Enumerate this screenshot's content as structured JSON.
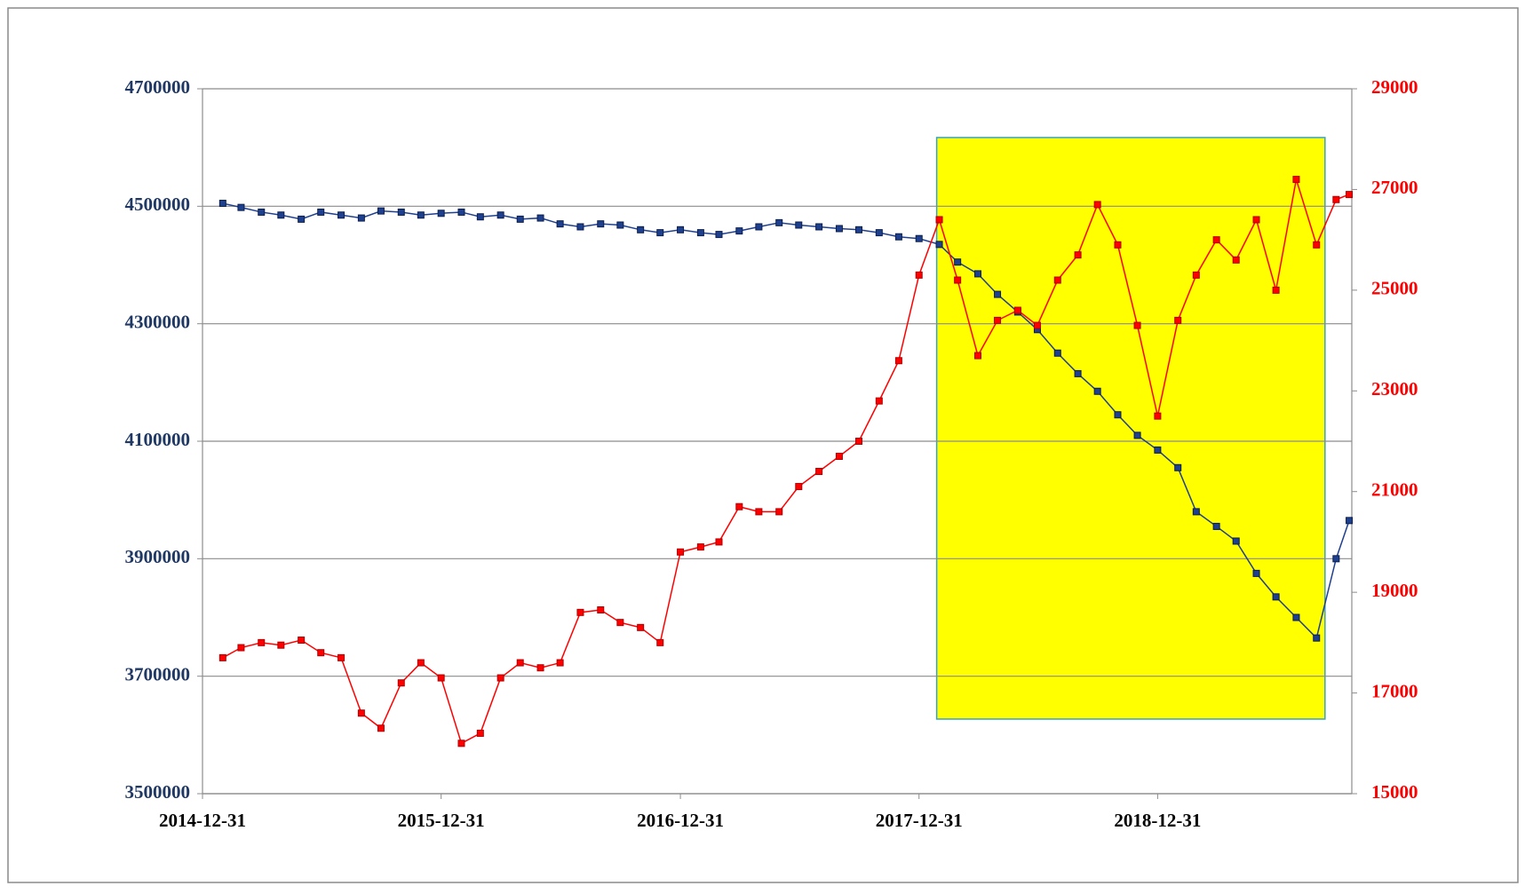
{
  "chart_data": {
    "type": "line",
    "x": [
      "2015-01-31",
      "2015-02-28",
      "2015-03-31",
      "2015-04-30",
      "2015-05-31",
      "2015-06-30",
      "2015-07-31",
      "2015-08-31",
      "2015-09-30",
      "2015-10-31",
      "2015-11-30",
      "2015-12-31",
      "2016-01-31",
      "2016-02-29",
      "2016-03-31",
      "2016-04-30",
      "2016-05-31",
      "2016-06-30",
      "2016-07-31",
      "2016-08-31",
      "2016-09-30",
      "2016-10-31",
      "2016-11-30",
      "2016-12-31",
      "2017-01-31",
      "2017-02-28",
      "2017-03-31",
      "2017-04-30",
      "2017-05-31",
      "2017-06-30",
      "2017-07-31",
      "2017-08-31",
      "2017-09-30",
      "2017-10-31",
      "2017-11-30",
      "2017-12-31",
      "2018-01-31",
      "2018-02-28",
      "2018-03-31",
      "2018-04-30",
      "2018-05-31",
      "2018-06-30",
      "2018-07-31",
      "2018-08-31",
      "2018-09-30",
      "2018-10-31",
      "2018-11-30",
      "2018-12-31",
      "2019-01-31",
      "2019-02-28",
      "2019-03-31",
      "2019-04-30",
      "2019-05-31",
      "2019-06-30",
      "2019-07-31",
      "2019-08-31",
      "2019-09-30",
      "2019-10-20"
    ],
    "series": [
      {
        "color": "#1f3f8f",
        "values": [
          4505000,
          4498000,
          4490000,
          4485000,
          4478000,
          4490000,
          4485000,
          4480000,
          4492000,
          4490000,
          4485000,
          4488000,
          4490000,
          4482000,
          4485000,
          4478000,
          4480000,
          4470000,
          4465000,
          4470000,
          4468000,
          4460000,
          4455000,
          4460000,
          4455000,
          4452000,
          4458000,
          4465000,
          4472000,
          4468000,
          4465000,
          4462000,
          4460000,
          4455000,
          4448000,
          4445000,
          4435000,
          4405000,
          4385000,
          4350000,
          4320000,
          4290000,
          4250000,
          4215000,
          4185000,
          4145000,
          4110000,
          4085000,
          4055000,
          3980000,
          3955000,
          3930000,
          3875000,
          3835000,
          3800000,
          3765000,
          3900000,
          3965000
        ]
      },
      {
        "color": "#ff0000",
        "axis": "y2",
        "values": [
          17700,
          17900,
          18000,
          17950,
          18050,
          17800,
          17700,
          16600,
          16300,
          17200,
          17600,
          17300,
          16000,
          16200,
          17300,
          17600,
          17500,
          17600,
          18600,
          18650,
          18400,
          18300,
          18000,
          19800,
          19900,
          20000,
          20700,
          20600,
          20600,
          21100,
          21400,
          21700,
          22000,
          22800,
          23600,
          25300,
          26400,
          25200,
          23700,
          24400,
          24600,
          24300,
          25200,
          25700,
          26700,
          25900,
          24300,
          22500,
          24400,
          25300,
          26000,
          25600,
          26400,
          25000,
          27200,
          25900,
          26800,
          26900
        ]
      }
    ],
    "xlim": [
      "2014-12-31",
      "2019-10-24"
    ],
    "xticks": [
      "2014-12-31",
      "2015-12-31",
      "2016-12-31",
      "2017-12-31",
      "2018-12-31"
    ],
    "ylim": [
      3500000,
      4700000
    ],
    "yticks": [
      3500000,
      3700000,
      3900000,
      4100000,
      4300000,
      4500000,
      4700000
    ],
    "y2lim": [
      15000,
      29000
    ],
    "y2ticks": [
      15000,
      17000,
      19000,
      21000,
      23000,
      25000,
      27000,
      29000
    ],
    "highlight": {
      "x": [
        "2018-01-27",
        "2019-09-13"
      ],
      "y": [
        3627000,
        4617000
      ],
      "color": "#ffff00"
    },
    "grid": true
  }
}
